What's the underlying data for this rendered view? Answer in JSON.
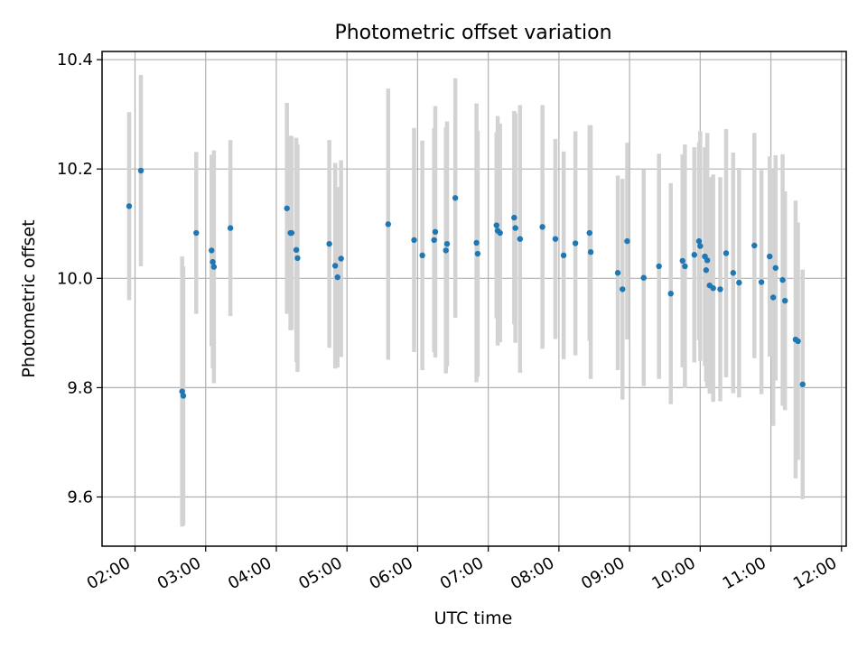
{
  "chart_data": {
    "type": "scatter",
    "title": "Photometric offset variation",
    "xlabel": "UTC time",
    "ylabel": "Photometric offset",
    "xlim": [
      "01:32",
      "12:04"
    ],
    "ylim": [
      9.51,
      10.415
    ],
    "grid": true,
    "legend": "none",
    "x_ticks": [
      "02:00",
      "03:00",
      "04:00",
      "05:00",
      "06:00",
      "07:00",
      "08:00",
      "09:00",
      "10:00",
      "11:00",
      "12:00"
    ],
    "y_ticks": [
      "9.6",
      "9.8",
      "10.0",
      "10.2",
      "10.4"
    ],
    "colors": {
      "point": "#1f77b4",
      "errorbar": "#d3d3d3",
      "grid": "#b0b0b0"
    },
    "series": [
      {
        "x": [
          "01:55",
          "02:05",
          "02:40",
          "02:41",
          "02:52",
          "03:05",
          "03:06",
          "03:07",
          "03:21",
          "04:09",
          "04:12",
          "04:13",
          "04:17",
          "04:18",
          "04:45",
          "04:50",
          "04:52",
          "04:55",
          "05:35",
          "05:57",
          "06:04",
          "06:14",
          "06:15",
          "06:24",
          "06:25",
          "06:32",
          "06:50",
          "06:51",
          "07:07",
          "07:08",
          "07:10",
          "07:22",
          "07:23",
          "07:27",
          "07:46",
          "07:57",
          "08:04",
          "08:14",
          "08:26",
          "08:27",
          "08:50",
          "08:54",
          "08:58",
          "09:12",
          "09:25",
          "09:35",
          "09:45",
          "09:47",
          "09:55",
          "09:59",
          "10:00",
          "10:04",
          "10:05",
          "10:06",
          "10:08",
          "10:11",
          "10:17",
          "10:22",
          "10:28",
          "10:33",
          "10:46",
          "10:52",
          "10:59",
          "11:02",
          "11:04",
          "11:10",
          "11:12",
          "11:21",
          "11:23",
          "11:27"
        ],
        "y": [
          10.132,
          10.197,
          9.793,
          9.785,
          10.083,
          10.051,
          10.03,
          10.021,
          10.092,
          10.128,
          10.083,
          10.083,
          10.052,
          10.037,
          10.063,
          10.023,
          10.002,
          10.036,
          10.099,
          10.07,
          10.042,
          10.07,
          10.085,
          10.051,
          10.063,
          10.147,
          10.065,
          10.045,
          10.097,
          10.087,
          10.083,
          10.111,
          10.092,
          10.072,
          10.094,
          10.072,
          10.042,
          10.064,
          10.083,
          10.048,
          10.01,
          9.98,
          10.068,
          10.001,
          10.022,
          9.972,
          10.032,
          10.022,
          10.043,
          10.068,
          10.059,
          10.04,
          10.015,
          10.033,
          9.987,
          9.982,
          9.98,
          10.046,
          10.01,
          9.992,
          10.06,
          9.993,
          10.04,
          9.965,
          10.019,
          9.997,
          9.959,
          9.888,
          9.885,
          9.806
        ],
        "yerr": [
          0.172,
          0.175,
          0.247,
          0.237,
          0.148,
          0.175,
          0.195,
          0.213,
          0.161,
          0.193,
          0.178,
          0.177,
          0.205,
          0.208,
          0.19,
          0.188,
          0.165,
          0.18,
          0.248,
          0.205,
          0.21,
          0.205,
          0.23,
          0.225,
          0.224,
          0.219,
          0.255,
          0.225,
          0.17,
          0.21,
          0.2,
          0.195,
          0.21,
          0.245,
          0.223,
          0.183,
          0.19,
          0.205,
          0.197,
          0.232,
          0.178,
          0.202,
          0.18,
          0.198,
          0.206,
          0.202,
          0.195,
          0.223,
          0.197,
          0.181,
          0.21,
          0.2,
          0.204,
          0.233,
          0.198,
          0.208,
          0.205,
          0.227,
          0.22,
          0.21,
          0.206,
          0.205,
          0.183,
          0.235,
          0.206,
          0.23,
          0.2,
          0.254,
          0.217,
          0.21
        ]
      }
    ]
  }
}
